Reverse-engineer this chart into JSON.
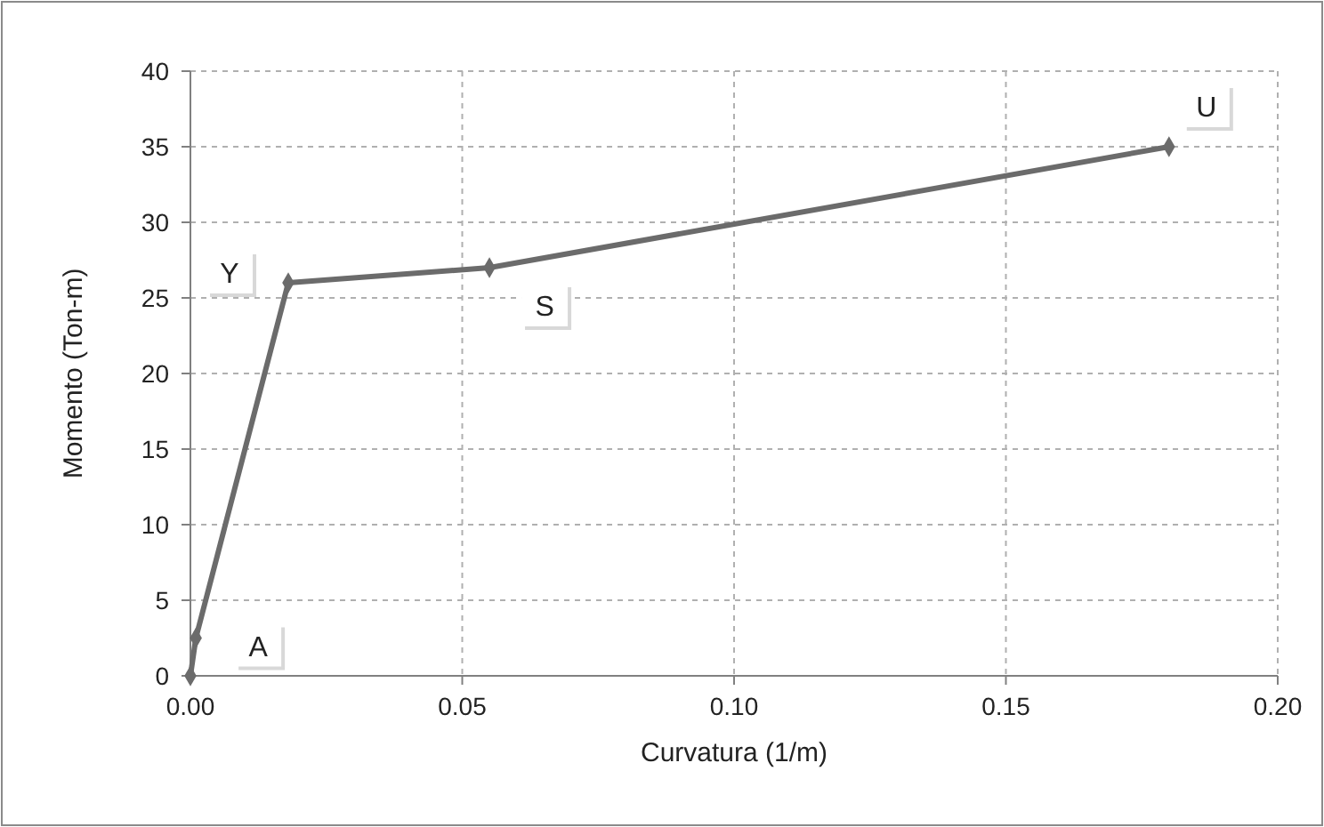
{
  "chart_data": {
    "type": "line",
    "xlabel": "Curvatura (1/m)",
    "ylabel": "Momento (Ton-m)",
    "x": [
      0,
      0.001,
      0.018,
      0.055,
      0.18
    ],
    "series": [
      {
        "color": "#6b6b6b",
        "values": [
          0,
          2.5,
          26,
          27,
          35
        ]
      }
    ],
    "xlim": [
      0,
      0.2
    ],
    "xticks": [
      {
        "value": 0,
        "label": "0.00"
      },
      {
        "value": 0.05,
        "label": "0.05"
      },
      {
        "value": 0.1,
        "label": "0.10"
      },
      {
        "value": 0.15,
        "label": "0.15"
      },
      {
        "value": 0.2,
        "label": "0.20"
      }
    ],
    "ylim": [
      0,
      40
    ],
    "yticks": [
      0,
      5,
      10,
      15,
      20,
      25,
      30,
      35,
      40
    ],
    "grid": true,
    "marker": "diamond",
    "line_style": "solid",
    "annotations": [
      {
        "text": "A",
        "x": 0.001,
        "y": 2.5
      },
      {
        "text": "Y",
        "x": 0.018,
        "y": 26
      },
      {
        "text": "S",
        "x": 0.055,
        "y": 27
      },
      {
        "text": "U",
        "x": 0.18,
        "y": 35
      }
    ]
  }
}
